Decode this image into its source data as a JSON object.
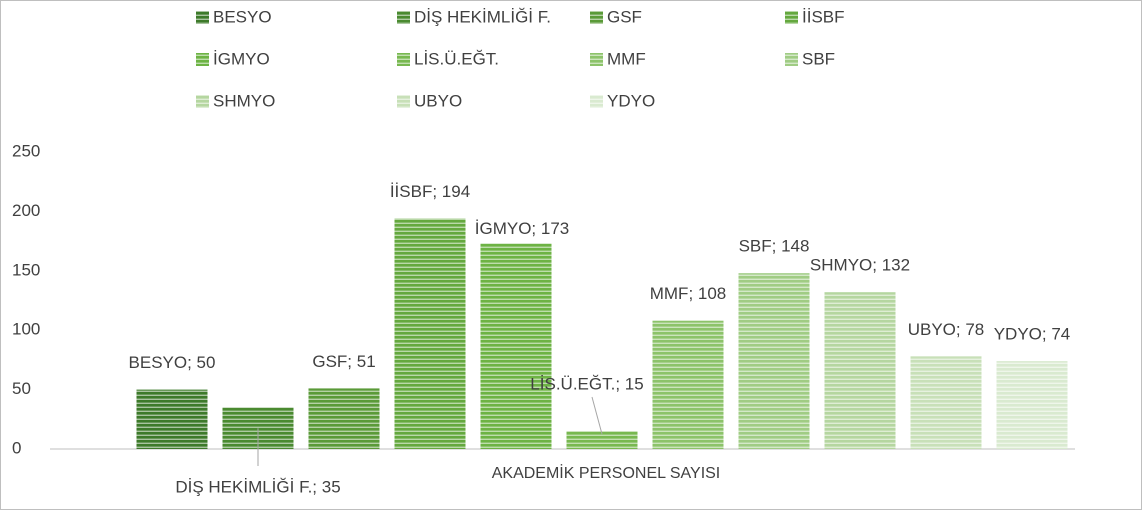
{
  "chart_data": {
    "type": "bar",
    "categories": [
      "AKADEMİK PERSONEL SAYISI"
    ],
    "series": [
      {
        "name": "BESYO",
        "color": "#3d7a2a",
        "values": [
          50
        ],
        "value_labels": [
          "BESYO; 50"
        ]
      },
      {
        "name": "DİŞ HEKİMLİĞİ F.",
        "color": "#4a8a30",
        "values": [
          35
        ],
        "value_labels": [
          "DİŞ HEKİMLİĞİ F.; 35"
        ]
      },
      {
        "name": "GSF",
        "color": "#5a9a38",
        "values": [
          51
        ],
        "value_labels": [
          "GSF; 51"
        ]
      },
      {
        "name": "İİSBF",
        "color": "#64a83e",
        "values": [
          194
        ],
        "value_labels": [
          "İİSBF; 194"
        ]
      },
      {
        "name": "İGMYO",
        "color": "#6db344",
        "values": [
          173
        ],
        "value_labels": [
          "İGMYO; 173"
        ]
      },
      {
        "name": "LİS.Ü.EĞT.",
        "color": "#78b850",
        "values": [
          15
        ],
        "value_labels": [
          "LİS.Ü.EĞT.; 15"
        ]
      },
      {
        "name": "MMF",
        "color": "#8cc36a",
        "values": [
          108
        ],
        "value_labels": [
          "MMF; 108"
        ]
      },
      {
        "name": "SBF",
        "color": "#a0cc84",
        "values": [
          148
        ],
        "value_labels": [
          "SBF; 148"
        ]
      },
      {
        "name": "SHMYO",
        "color": "#b5d6a0",
        "values": [
          132
        ],
        "value_labels": [
          "SHMYO; 132"
        ]
      },
      {
        "name": "UBYO",
        "color": "#c8e0b8",
        "values": [
          78
        ],
        "value_labels": [
          "UBYO; 78"
        ]
      },
      {
        "name": "YDYO",
        "color": "#d9ead0",
        "values": [
          74
        ],
        "value_labels": [
          "YDYO; 74"
        ]
      }
    ],
    "ylim": [
      0,
      250
    ],
    "yticks": [
      0,
      50,
      100,
      150,
      200,
      250
    ],
    "grid": false,
    "legend": "top"
  }
}
